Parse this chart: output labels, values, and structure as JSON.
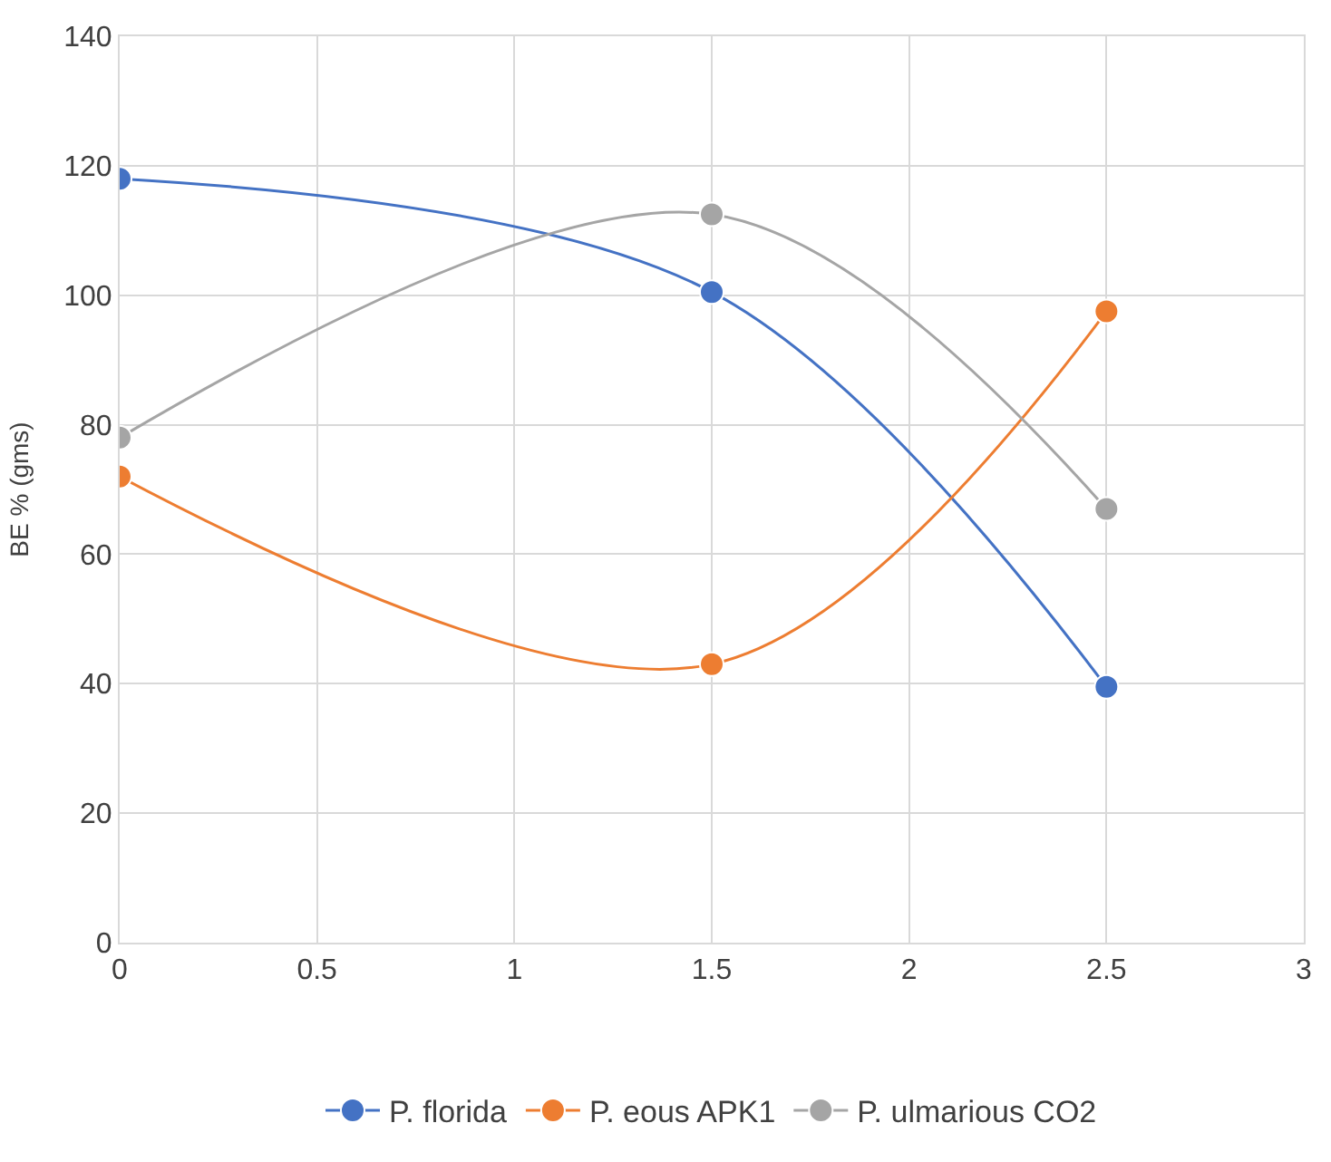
{
  "chart_data": {
    "type": "line",
    "ylabel": "BE % (gms)",
    "x": [
      0,
      1.5,
      2.5
    ],
    "series": [
      {
        "name": "P. florida",
        "color": "#4472c4",
        "values": [
          118,
          100.5,
          39.5
        ]
      },
      {
        "name": "P. eous APK1",
        "color": "#ed7d31",
        "values": [
          72,
          43,
          97.5
        ]
      },
      {
        "name": "P. ulmarious CO2",
        "color": "#a5a5a5",
        "values": [
          78,
          112.5,
          67
        ]
      }
    ],
    "xlim": [
      0,
      3
    ],
    "xticks": [
      0,
      0.5,
      1,
      1.5,
      2,
      2.5,
      3
    ],
    "ylim": [
      0,
      140
    ],
    "yticks": [
      0,
      20,
      40,
      60,
      80,
      100,
      120,
      140
    ],
    "grid": true,
    "legend": "bottom",
    "marker": "circle",
    "line_style": "solid"
  }
}
